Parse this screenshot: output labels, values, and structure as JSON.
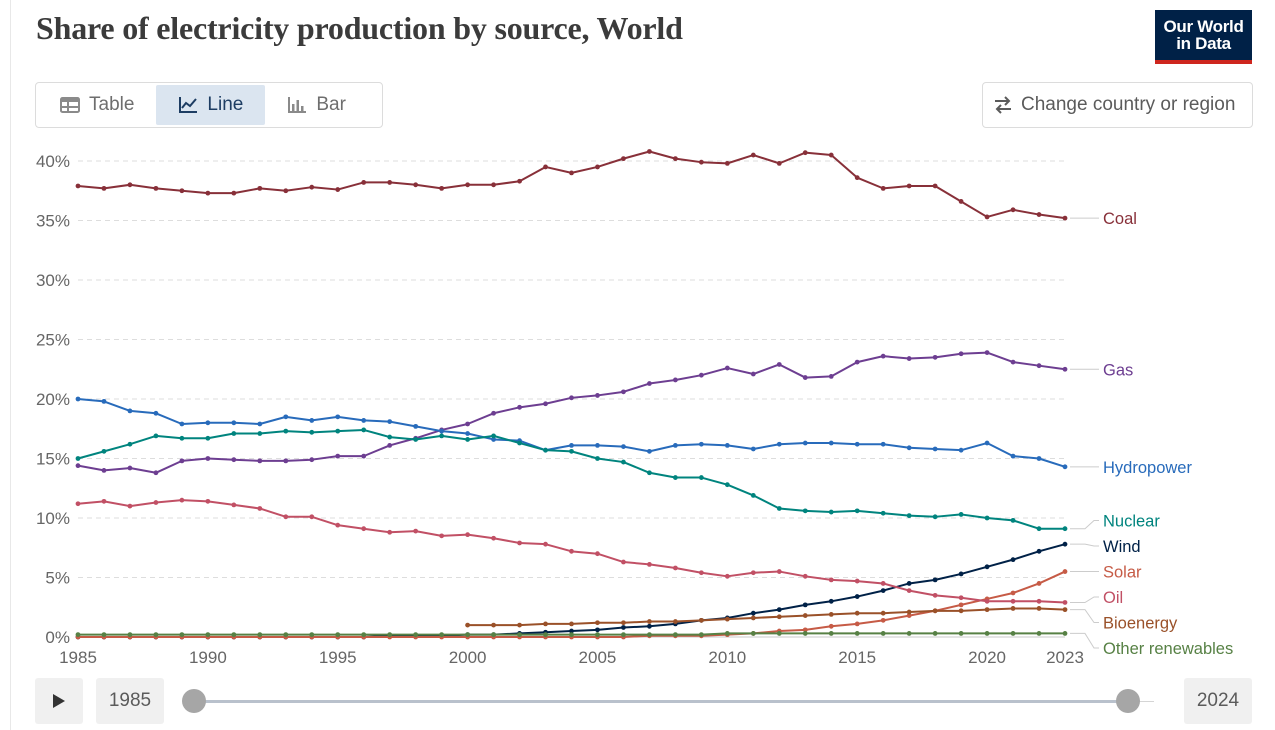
{
  "header": {
    "title": "Share of electricity production by source, World",
    "logo_line1": "Our World",
    "logo_line2": "in Data"
  },
  "tabs": [
    {
      "label": "Table",
      "icon": "table-icon",
      "active": false
    },
    {
      "label": "Line",
      "icon": "line-chart-icon",
      "active": true
    },
    {
      "label": "Bar",
      "icon": "bar-chart-icon",
      "active": false
    }
  ],
  "change_region_label": "Change country or region",
  "controls": {
    "start_year": "1985",
    "end_year": "2024",
    "range_start": 1985,
    "range_end": 2024
  },
  "colors": {
    "active_tab_bg": "#dbe5f0",
    "logo_bg": "#002147",
    "logo_accent": "#ce261e"
  },
  "chart_data": {
    "type": "line",
    "ylim": [
      0,
      40
    ],
    "xlim": [
      1985,
      2023
    ],
    "y_ticks": [
      "0%",
      "5%",
      "10%",
      "15%",
      "20%",
      "25%",
      "30%",
      "35%",
      "40%"
    ],
    "x_ticks": [
      "1985",
      "1990",
      "1995",
      "2000",
      "2005",
      "2010",
      "2015",
      "2020",
      "2023"
    ],
    "grid": "horizontal dashed",
    "legend": "right, inline labels",
    "series": [
      {
        "name": "Coal",
        "color": "#883039",
        "start": 1985,
        "values": [
          37.9,
          37.7,
          38.0,
          37.7,
          37.5,
          37.3,
          37.3,
          37.7,
          37.5,
          37.8,
          37.6,
          38.2,
          38.2,
          38.0,
          37.7,
          38.0,
          38.0,
          38.3,
          39.5,
          39.0,
          39.5,
          40.2,
          40.8,
          40.2,
          39.9,
          39.8,
          40.5,
          39.8,
          40.7,
          40.5,
          38.6,
          37.7,
          37.9,
          37.9,
          36.6,
          35.3,
          35.9,
          35.5,
          35.2
        ]
      },
      {
        "name": "Gas",
        "color": "#6d3e91",
        "start": 1985,
        "values": [
          14.4,
          14.0,
          14.2,
          13.8,
          14.8,
          15.0,
          14.9,
          14.8,
          14.8,
          14.9,
          15.2,
          15.2,
          16.1,
          16.7,
          17.4,
          17.9,
          18.8,
          19.3,
          19.6,
          20.1,
          20.3,
          20.6,
          21.3,
          21.6,
          22.0,
          22.6,
          22.1,
          22.9,
          21.8,
          21.9,
          23.1,
          23.6,
          23.4,
          23.5,
          23.8,
          23.9,
          23.1,
          22.8,
          22.5
        ]
      },
      {
        "name": "Hydropower",
        "color": "#286bbb",
        "start": 1985,
        "values": [
          20.0,
          19.8,
          19.0,
          18.8,
          17.9,
          18.0,
          18.0,
          17.9,
          18.5,
          18.2,
          18.5,
          18.2,
          18.1,
          17.7,
          17.3,
          17.1,
          16.6,
          16.5,
          15.7,
          16.1,
          16.1,
          16.0,
          15.6,
          16.1,
          16.2,
          16.1,
          15.8,
          16.2,
          16.3,
          16.3,
          16.2,
          16.2,
          15.9,
          15.8,
          15.7,
          16.3,
          15.2,
          15.0,
          14.3
        ]
      },
      {
        "name": "Nuclear",
        "color": "#00847e",
        "start": 1985,
        "values": [
          15.0,
          15.6,
          16.2,
          16.9,
          16.7,
          16.7,
          17.1,
          17.1,
          17.3,
          17.2,
          17.3,
          17.4,
          16.8,
          16.6,
          16.9,
          16.6,
          16.9,
          16.3,
          15.7,
          15.6,
          15.0,
          14.7,
          13.8,
          13.4,
          13.4,
          12.8,
          11.9,
          10.8,
          10.6,
          10.5,
          10.6,
          10.4,
          10.2,
          10.1,
          10.3,
          10.0,
          9.8,
          9.1,
          9.1
        ]
      },
      {
        "name": "Wind",
        "color": "#002147",
        "start": 1985,
        "values": [
          0,
          0,
          0,
          0,
          0,
          0,
          0,
          0,
          0,
          0,
          0,
          0,
          0.1,
          0.1,
          0.1,
          0.2,
          0.2,
          0.3,
          0.4,
          0.5,
          0.6,
          0.8,
          0.9,
          1.1,
          1.4,
          1.6,
          2.0,
          2.3,
          2.7,
          3.0,
          3.4,
          3.9,
          4.5,
          4.8,
          5.3,
          5.9,
          6.5,
          7.2,
          7.8
        ]
      },
      {
        "name": "Solar",
        "color": "#c65b46",
        "start": 1985,
        "values": [
          0,
          0,
          0,
          0,
          0,
          0,
          0,
          0,
          0,
          0,
          0,
          0,
          0,
          0,
          0,
          0,
          0,
          0,
          0,
          0,
          0,
          0,
          0.1,
          0.1,
          0.1,
          0.2,
          0.3,
          0.5,
          0.6,
          0.9,
          1.1,
          1.4,
          1.8,
          2.2,
          2.7,
          3.2,
          3.7,
          4.5,
          5.5
        ]
      },
      {
        "name": "Oil",
        "color": "#c15065",
        "start": 1985,
        "values": [
          11.2,
          11.4,
          11.0,
          11.3,
          11.5,
          11.4,
          11.1,
          10.8,
          10.1,
          10.1,
          9.4,
          9.1,
          8.8,
          8.9,
          8.5,
          8.6,
          8.3,
          7.9,
          7.8,
          7.2,
          7.0,
          6.3,
          6.1,
          5.8,
          5.4,
          5.1,
          5.4,
          5.5,
          5.1,
          4.8,
          4.7,
          4.5,
          3.9,
          3.5,
          3.3,
          3.0,
          3.0,
          3.0,
          2.9
        ]
      },
      {
        "name": "Bioenergy",
        "color": "#9a5129",
        "start": 2000,
        "values": [
          1.0,
          1.0,
          1.0,
          1.1,
          1.1,
          1.2,
          1.2,
          1.3,
          1.3,
          1.4,
          1.5,
          1.6,
          1.7,
          1.8,
          1.9,
          2.0,
          2.0,
          2.1,
          2.2,
          2.2,
          2.3,
          2.4,
          2.4,
          2.3
        ]
      },
      {
        "name": "Other renewables",
        "color": "#578145",
        "start": 1985,
        "values": [
          0.2,
          0.2,
          0.2,
          0.2,
          0.2,
          0.2,
          0.2,
          0.2,
          0.2,
          0.2,
          0.2,
          0.2,
          0.2,
          0.2,
          0.2,
          0.2,
          0.2,
          0.2,
          0.2,
          0.2,
          0.2,
          0.2,
          0.2,
          0.2,
          0.2,
          0.3,
          0.3,
          0.3,
          0.3,
          0.3,
          0.3,
          0.3,
          0.3,
          0.3,
          0.3,
          0.3,
          0.3,
          0.3,
          0.3
        ]
      }
    ]
  }
}
